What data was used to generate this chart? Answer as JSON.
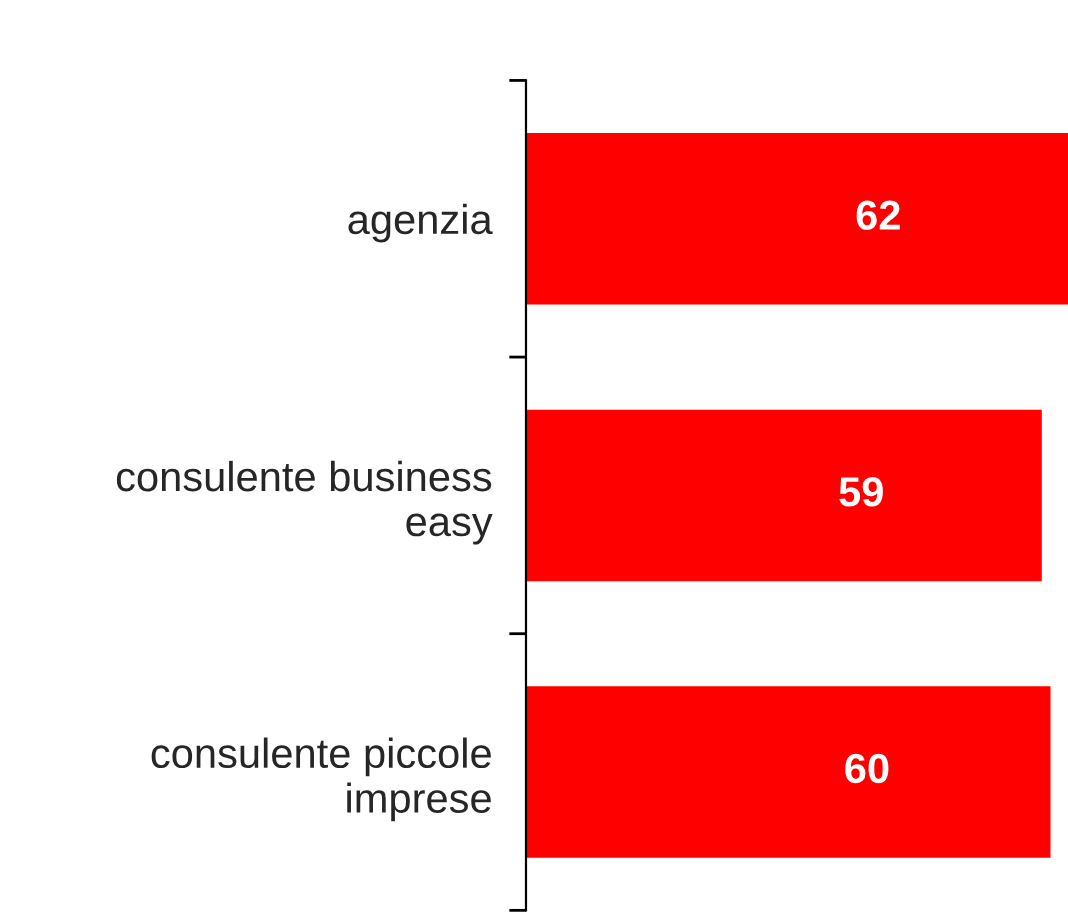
{
  "chart_data": {
    "type": "bar",
    "orientation": "horizontal",
    "tick_labels": "y",
    "data_labels": true,
    "categories": [
      "agenzia",
      "consulente business\neasy",
      "consulente piccole\nimprese"
    ],
    "values": [
      62,
      59,
      60
    ],
    "color": "#ff0000",
    "grid": false,
    "legend": false
  }
}
